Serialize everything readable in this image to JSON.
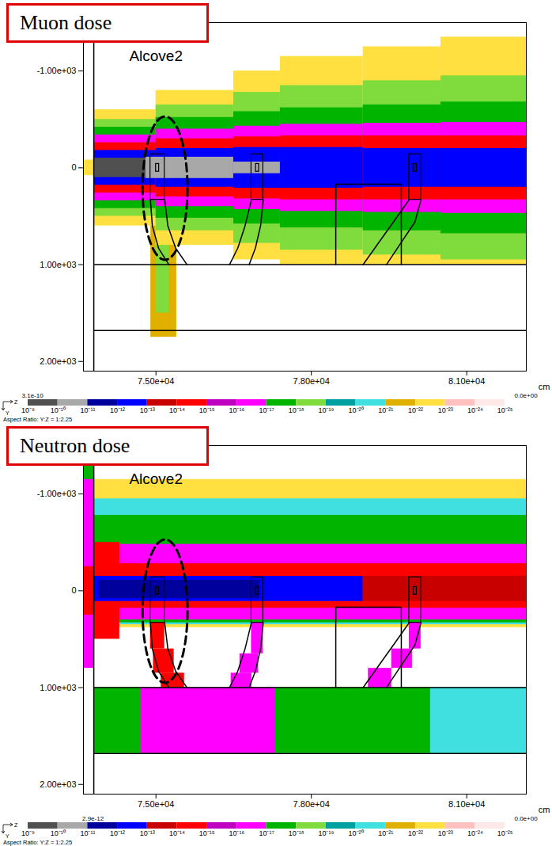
{
  "chart_data": [
    {
      "type": "heatmap",
      "title": "Muon dose",
      "annotations": [
        {
          "text": "Alcove2",
          "x": 75000,
          "y": -1150
        }
      ],
      "x_label": "cm",
      "xlim": [
        73600,
        82150
      ],
      "ylim": [
        -1500,
        2100
      ],
      "xticks": [
        {
          "value": 75000,
          "label": "7.50e+04"
        },
        {
          "value": 78000,
          "label": "7.80e+04"
        },
        {
          "value": 81000,
          "label": "8.10e+04"
        }
      ],
      "yticks": [
        {
          "value": -1000,
          "label": "-1.00e+03"
        },
        0,
        {
          "value": 1000,
          "label": "1.00e+03"
        },
        {
          "value": 2000,
          "label": "2.00e+03"
        }
      ],
      "cells": [
        [
          73600,
          73800,
          -80,
          80,
          3e-23
        ],
        [
          74900,
          75400,
          600,
          1750,
          3e-22
        ],
        [
          75000,
          75250,
          700,
          1500,
          3e-19
        ],
        [
          73800,
          75000,
          -600,
          600,
          3e-23
        ],
        [
          75000,
          76500,
          -800,
          800,
          3e-23
        ],
        [
          76500,
          77400,
          -1000,
          950,
          3e-23
        ],
        [
          77400,
          79000,
          -1150,
          1000,
          3e-23
        ],
        [
          79000,
          80500,
          -1250,
          1000,
          3e-23
        ],
        [
          80500,
          82150,
          -1350,
          1000,
          3e-23
        ],
        [
          73800,
          75000,
          -500,
          500,
          3e-19
        ],
        [
          75000,
          76500,
          -650,
          650,
          3e-19
        ],
        [
          76500,
          77400,
          -780,
          780,
          3e-19
        ],
        [
          77400,
          79000,
          -850,
          850,
          3e-19
        ],
        [
          79000,
          80500,
          -900,
          900,
          3e-19
        ],
        [
          80500,
          82150,
          -950,
          950,
          3e-19
        ],
        [
          73800,
          75000,
          -420,
          420,
          3e-18
        ],
        [
          75000,
          76500,
          -520,
          520,
          3e-18
        ],
        [
          76500,
          77400,
          -580,
          580,
          3e-18
        ],
        [
          77400,
          79000,
          -620,
          620,
          3e-18
        ],
        [
          79000,
          80500,
          -650,
          650,
          3e-18
        ],
        [
          80500,
          82150,
          -680,
          680,
          3e-18
        ],
        [
          73800,
          75000,
          -340,
          340,
          3e-17
        ],
        [
          75000,
          76500,
          -400,
          400,
          3e-17
        ],
        [
          76500,
          77400,
          -430,
          430,
          3e-17
        ],
        [
          77400,
          79000,
          -450,
          450,
          3e-17
        ],
        [
          79000,
          80500,
          -460,
          460,
          3e-17
        ],
        [
          80500,
          82150,
          -470,
          470,
          3e-17
        ],
        [
          73800,
          75000,
          -260,
          260,
          3e-15
        ],
        [
          75000,
          76500,
          -300,
          300,
          3e-15
        ],
        [
          76500,
          77400,
          -320,
          320,
          3e-15
        ],
        [
          77400,
          79000,
          -330,
          330,
          3e-15
        ],
        [
          79000,
          80500,
          -330,
          330,
          3e-15
        ],
        [
          80500,
          82150,
          -330,
          330,
          3e-15
        ],
        [
          73800,
          75000,
          -180,
          180,
          3e-13
        ],
        [
          75000,
          76500,
          -200,
          200,
          3e-13
        ],
        [
          76500,
          77400,
          -210,
          210,
          3e-13
        ],
        [
          77400,
          79000,
          -210,
          210,
          3e-13
        ],
        [
          79000,
          80500,
          -200,
          200,
          3e-13
        ],
        [
          80500,
          82150,
          -200,
          200,
          3e-13
        ],
        [
          74800,
          76500,
          -110,
          110,
          3e-11
        ],
        [
          76500,
          77400,
          -60,
          60,
          3e-11
        ],
        [
          73800,
          74800,
          -100,
          100,
          3e-10
        ]
      ],
      "outlines": {
        "rects": [
          [
            74893,
            75168,
            -140,
            330
          ],
          [
            76843,
            77071,
            -140,
            330
          ],
          [
            79889,
            80117,
            -140,
            330
          ],
          [
            75000,
            75060,
            -40,
            40
          ],
          [
            76930,
            76990,
            -40,
            40
          ],
          [
            79975,
            80035,
            -40,
            40
          ]
        ],
        "lines": [
          [
            [
              73800,
              -1500
            ],
            [
              73800,
              2100
            ]
          ],
          [
            [
              73800,
              1000
            ],
            [
              82150,
              1000
            ]
          ],
          [
            [
              73800,
              1680
            ],
            [
              82150,
              1680
            ]
          ],
          [
            [
              74893,
              330
            ],
            [
              74930,
              600
            ],
            [
              75050,
              830
            ],
            [
              75250,
              1000
            ]
          ],
          [
            [
              75168,
              330
            ],
            [
              75230,
              600
            ],
            [
              75380,
              830
            ],
            [
              75600,
              1000
            ]
          ],
          [
            [
              76843,
              330
            ],
            [
              76720,
              600
            ],
            [
              76580,
              830
            ],
            [
              76420,
              1000
            ]
          ],
          [
            [
              77071,
              330
            ],
            [
              77020,
              600
            ],
            [
              76920,
              830
            ],
            [
              76800,
              1000
            ]
          ],
          [
            [
              79889,
              330
            ],
            [
              79000,
              1000
            ]
          ],
          [
            [
              80117,
              330
            ],
            [
              80000,
              560
            ],
            [
              79450,
              1000
            ]
          ],
          [
            [
              78472,
              1000
            ],
            [
              78472,
              170
            ],
            [
              79737,
              170
            ],
            [
              79737,
              1000
            ]
          ]
        ],
        "ellipse": {
          "x": 75175,
          "y": 210,
          "rx": 434,
          "ry": 740
        }
      },
      "colorbar": {
        "ticks": [
          {
            "value": 1e-09,
            "label": "10⁻⁹"
          },
          {
            "value": 1e-10,
            "label": "10⁻¹⁰"
          },
          {
            "value": 1e-11,
            "label": "10⁻¹¹"
          },
          {
            "value": 1e-12,
            "label": "10⁻¹²"
          },
          {
            "value": 1e-13,
            "label": "10⁻¹³"
          },
          {
            "value": 1e-14,
            "label": "10⁻¹⁴"
          },
          {
            "value": 1e-15,
            "label": "10⁻¹⁵"
          },
          {
            "value": 1e-16,
            "label": "10⁻¹⁶"
          },
          {
            "value": 1e-17,
            "label": "10⁻¹⁷"
          },
          {
            "value": 1e-18,
            "label": "10⁻¹⁸"
          },
          {
            "value": 1e-19,
            "label": "10⁻¹⁹"
          },
          {
            "value": 1e-20,
            "label": "10⁻²⁰"
          },
          {
            "value": 1e-21,
            "label": "10⁻²¹"
          },
          {
            "value": 1e-22,
            "label": "10⁻²²"
          },
          {
            "value": 1e-23,
            "label": "10⁻²³"
          },
          {
            "value": 1e-24,
            "label": "10⁻²⁴"
          },
          {
            "value": 1e-25,
            "label": "10⁻²⁵"
          }
        ],
        "colors": [
          "#505050",
          "#a8a8a8",
          "#00009c",
          "#0000ff",
          "#c80000",
          "#ff0000",
          "#c000c0",
          "#ff00ff",
          "#00b400",
          "#7fdc3c",
          "#00a0a0",
          "#40e0e0",
          "#e0b000",
          "#ffe040",
          "#ffc0c0",
          "#ffe8e8"
        ],
        "max": {
          "value": 3.1e-10,
          "label": "3.1e-10"
        },
        "min": {
          "value": 0,
          "label": "0.0e+00"
        }
      },
      "axis_names": [
        "Z",
        "Y"
      ],
      "footnote": "Aspect Ratio: Y:Z = 1:2.25"
    },
    {
      "type": "heatmap",
      "title": "Neutron dose",
      "annotations": [
        {
          "text": "Alcove2",
          "x": 75000,
          "y": -1150
        }
      ],
      "x_label": "cm",
      "xlim": [
        73600,
        82150
      ],
      "ylim": [
        -1500,
        2100
      ],
      "xticks": [
        {
          "value": 75000,
          "label": "7.50e+04"
        },
        {
          "value": 78000,
          "label": "7.80e+04"
        },
        {
          "value": 81000,
          "label": "8.10e+04"
        }
      ],
      "yticks": [
        {
          "value": -1000,
          "label": "-1.00e+03"
        },
        0,
        {
          "value": 1000,
          "label": "1.00e+03"
        },
        {
          "value": 2000,
          "label": "2.00e+03"
        }
      ],
      "cells": [
        [
          73600,
          73800,
          -1500,
          800,
          3e-17
        ],
        [
          73600,
          73800,
          -1500,
          -1150,
          3e-18
        ],
        [
          73600,
          73800,
          -250,
          250,
          3e-15
        ],
        [
          73800,
          82150,
          1000,
          1680,
          3e-18
        ],
        [
          74700,
          77300,
          1000,
          1680,
          3e-17
        ],
        [
          80300,
          82150,
          1000,
          1680,
          3e-21
        ],
        [
          73800,
          82150,
          -1150,
          380,
          3e-23
        ],
        [
          73800,
          82150,
          -950,
          350,
          3e-21
        ],
        [
          73800,
          82150,
          -780,
          330,
          3e-18
        ],
        [
          73800,
          82150,
          -480,
          300,
          3e-17
        ],
        [
          74893,
          75168,
          330,
          600,
          3e-15
        ],
        [
          74950,
          75350,
          600,
          850,
          3e-15
        ],
        [
          75100,
          75550,
          850,
          1000,
          3e-15
        ],
        [
          76843,
          77071,
          330,
          650,
          3e-17
        ],
        [
          76620,
          76980,
          650,
          850,
          3e-17
        ],
        [
          76450,
          76850,
          850,
          1000,
          3e-17
        ],
        [
          79889,
          80117,
          330,
          600,
          3e-17
        ],
        [
          79550,
          79950,
          600,
          800,
          3e-17
        ],
        [
          79100,
          79550,
          800,
          1000,
          3e-17
        ],
        [
          73800,
          74300,
          -500,
          500,
          3e-15
        ],
        [
          73800,
          82150,
          -280,
          180,
          3e-15
        ],
        [
          73800,
          79000,
          -150,
          110,
          3e-13
        ],
        [
          79000,
          82150,
          -150,
          110,
          3e-14
        ],
        [
          73900,
          77000,
          -110,
          80,
          3e-12
        ]
      ],
      "outlines": {
        "rects": [
          [
            74893,
            75168,
            -140,
            330
          ],
          [
            76843,
            77071,
            -140,
            330
          ],
          [
            79889,
            80117,
            -140,
            330
          ],
          [
            75000,
            75060,
            -40,
            40
          ],
          [
            76930,
            76990,
            -40,
            40
          ],
          [
            79975,
            80035,
            -40,
            40
          ]
        ],
        "lines": [
          [
            [
              73800,
              -1500
            ],
            [
              73800,
              2100
            ]
          ],
          [
            [
              73800,
              1000
            ],
            [
              82150,
              1000
            ]
          ],
          [
            [
              73800,
              1680
            ],
            [
              82150,
              1680
            ]
          ],
          [
            [
              74893,
              330
            ],
            [
              74930,
              600
            ],
            [
              75050,
              830
            ],
            [
              75250,
              1000
            ]
          ],
          [
            [
              75168,
              330
            ],
            [
              75230,
              600
            ],
            [
              75380,
              830
            ],
            [
              75600,
              1000
            ]
          ],
          [
            [
              76843,
              330
            ],
            [
              76720,
              600
            ],
            [
              76580,
              830
            ],
            [
              76420,
              1000
            ]
          ],
          [
            [
              77071,
              330
            ],
            [
              77020,
              600
            ],
            [
              76920,
              830
            ],
            [
              76800,
              1000
            ]
          ],
          [
            [
              79889,
              330
            ],
            [
              79000,
              1000
            ]
          ],
          [
            [
              80117,
              330
            ],
            [
              80000,
              560
            ],
            [
              79450,
              1000
            ]
          ],
          [
            [
              78472,
              1000
            ],
            [
              78472,
              170
            ],
            [
              79737,
              170
            ],
            [
              79737,
              1000
            ]
          ]
        ],
        "ellipse": {
          "x": 75175,
          "y": 210,
          "rx": 434,
          "ry": 740
        }
      },
      "colorbar": {
        "ticks": [
          {
            "value": 1e-09,
            "label": "10⁻⁹"
          },
          {
            "value": 1e-10,
            "label": "10⁻¹⁰"
          },
          {
            "value": 1e-11,
            "label": "10⁻¹¹"
          },
          {
            "value": 1e-12,
            "label": "10⁻¹²"
          },
          {
            "value": 1e-13,
            "label": "10⁻¹³"
          },
          {
            "value": 1e-14,
            "label": "10⁻¹⁴"
          },
          {
            "value": 1e-15,
            "label": "10⁻¹⁵"
          },
          {
            "value": 1e-16,
            "label": "10⁻¹⁶"
          },
          {
            "value": 1e-17,
            "label": "10⁻¹⁷"
          },
          {
            "value": 1e-18,
            "label": "10⁻¹⁸"
          },
          {
            "value": 1e-19,
            "label": "10⁻¹⁹"
          },
          {
            "value": 1e-20,
            "label": "10⁻²⁰"
          },
          {
            "value": 1e-21,
            "label": "10⁻²¹"
          },
          {
            "value": 1e-22,
            "label": "10⁻²²"
          },
          {
            "value": 1e-23,
            "label": "10⁻²³"
          },
          {
            "value": 1e-24,
            "label": "10⁻²⁴"
          },
          {
            "value": 1e-25,
            "label": "10⁻²⁵"
          }
        ],
        "colors": [
          "#505050",
          "#a8a8a8",
          "#00009c",
          "#0000ff",
          "#c80000",
          "#ff0000",
          "#c000c0",
          "#ff00ff",
          "#00b400",
          "#7fdc3c",
          "#00a0a0",
          "#40e0e0",
          "#e0b000",
          "#ffe040",
          "#ffc0c0",
          "#ffe8e8"
        ],
        "max": {
          "value": 2.9e-12,
          "label": "2.9e-12"
        },
        "min": {
          "value": 0,
          "label": "0.0e+00"
        }
      },
      "axis_names": [
        "Z",
        "Y"
      ],
      "footnote": "Aspect Ratio: Y:Z = 1:2.25"
    }
  ]
}
